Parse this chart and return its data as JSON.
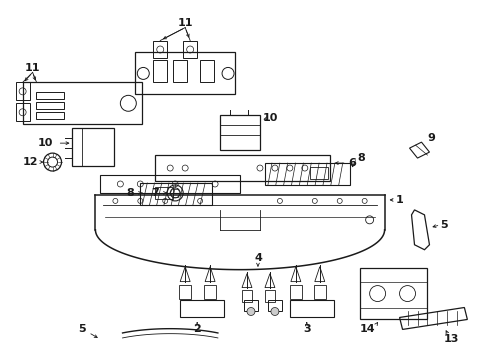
{
  "bg_color": "#ffffff",
  "lc": "#1a1a1a",
  "figsize": [
    4.89,
    3.6
  ],
  "dpi": 100
}
